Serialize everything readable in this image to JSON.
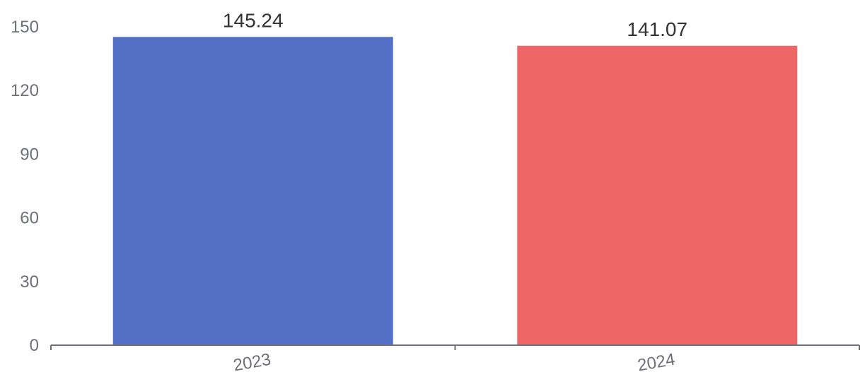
{
  "chart_data": {
    "type": "bar",
    "categories": [
      "2023",
      "2024"
    ],
    "values": [
      145.24,
      141.07
    ],
    "value_labels": [
      "145.24",
      "141.07"
    ],
    "colors": [
      "#5470c6",
      "#ee6666"
    ],
    "title": "",
    "xlabel": "",
    "ylabel": "",
    "ylim": [
      0,
      150
    ],
    "y_ticks": [
      0,
      30,
      60,
      90,
      120,
      150
    ],
    "y_tick_labels": [
      "0",
      "30",
      "60",
      "90",
      "120",
      "150"
    ],
    "grid": false,
    "legend": "none",
    "x_tick_label_rotation_deg": -10
  }
}
